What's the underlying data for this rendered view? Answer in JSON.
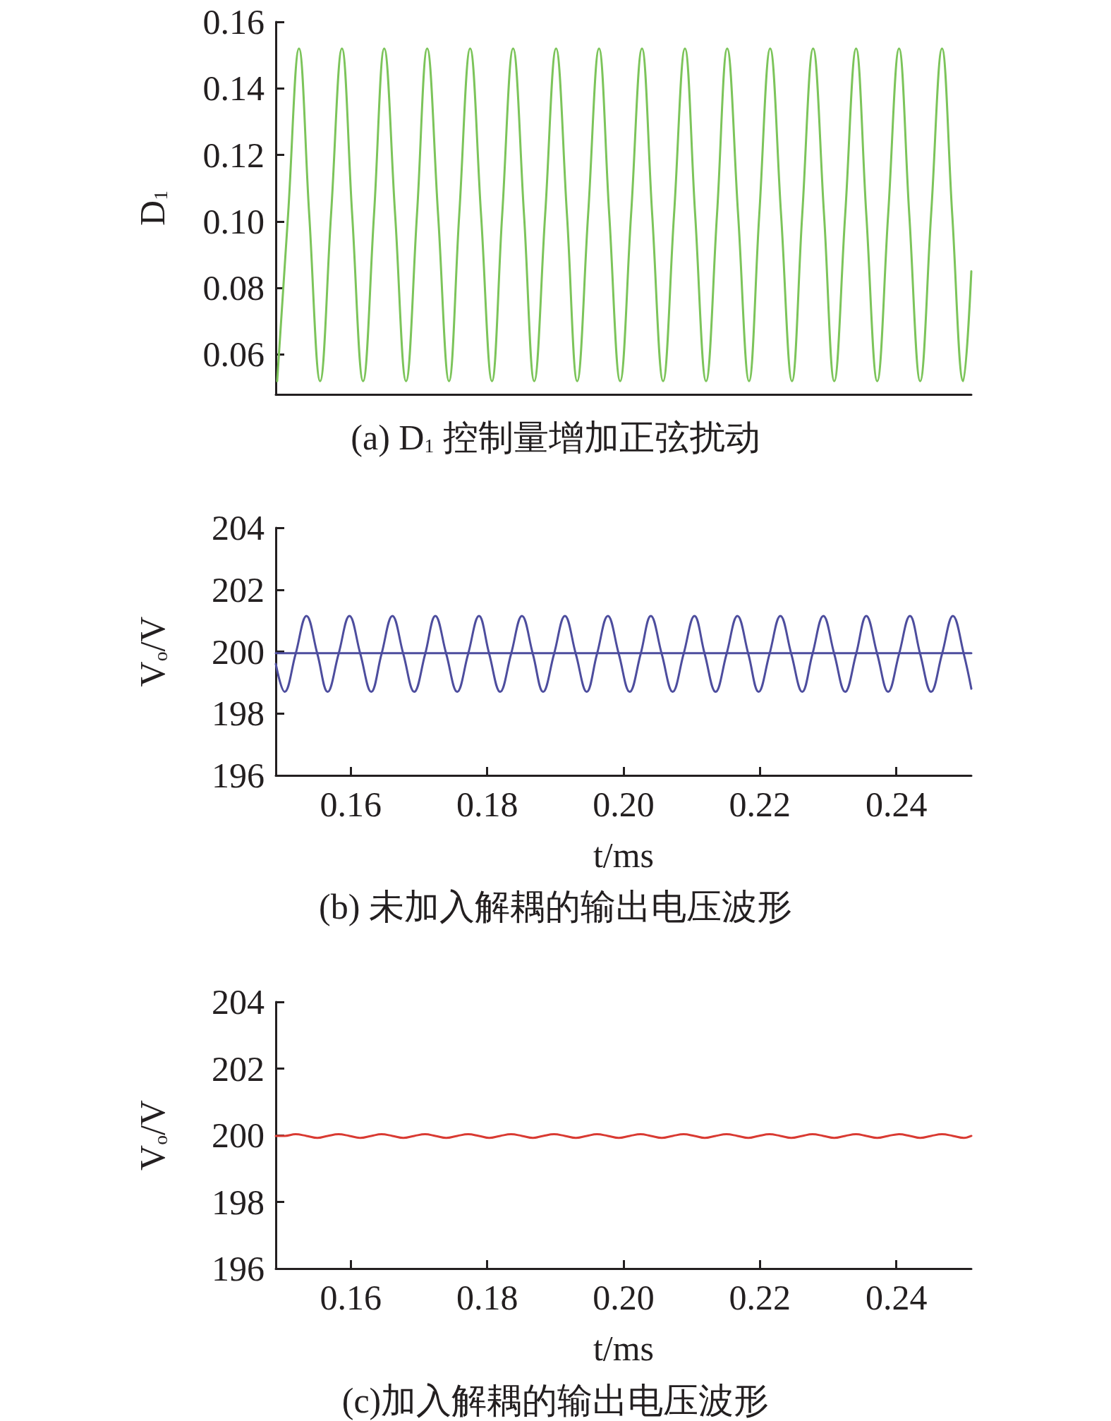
{
  "chart_data": [
    {
      "type": "line",
      "title": "(a) D$_{1}$ 控制量增加正弦扰动",
      "ylabel": "D$_{1}$",
      "xlim": [
        0.149,
        0.251
      ],
      "ylim": [
        0.048,
        0.16
      ],
      "yticks": [
        {
          "value": 0.06,
          "label": "0.06"
        },
        {
          "value": 0.08,
          "label": "0.08"
        },
        {
          "value": 0.1,
          "label": "0.10"
        },
        0.12,
        0.14,
        0.16
      ],
      "tick_labels": "y",
      "series": [
        {
          "color": "#7cc45a",
          "x": [
            0.1492,
            0.1508,
            0.1524,
            0.1539,
            0.1555,
            0.1571,
            0.1587,
            0.1602,
            0.1618,
            0.1634,
            0.1649,
            0.1665,
            0.1681,
            0.1697,
            0.1712,
            0.1728,
            0.1744,
            0.1759,
            0.1775,
            0.1791,
            0.1807,
            0.1822,
            0.1838,
            0.1854,
            0.1869,
            0.1885,
            0.1901,
            0.1917,
            0.1932,
            0.1948,
            0.1964,
            0.1979,
            0.1995,
            0.2011,
            0.2027,
            0.2042,
            0.2058,
            0.2074,
            0.209,
            0.2105,
            0.2121,
            0.2137,
            0.2152,
            0.2168,
            0.2184,
            0.2199,
            0.2215,
            0.2231,
            0.2247,
            0.2262,
            0.2278,
            0.2294,
            0.2309,
            0.2325,
            0.2341,
            0.2356,
            0.2372,
            0.2388,
            0.2404,
            0.2419,
            0.2435,
            0.2451,
            0.2467,
            0.2482,
            0.2498,
            0.251
          ],
          "values": [
            0.052,
            0.102,
            0.152,
            0.102,
            0.052,
            0.102,
            0.152,
            0.102,
            0.052,
            0.102,
            0.152,
            0.102,
            0.052,
            0.102,
            0.152,
            0.102,
            0.052,
            0.102,
            0.152,
            0.102,
            0.052,
            0.102,
            0.152,
            0.102,
            0.052,
            0.102,
            0.152,
            0.102,
            0.052,
            0.102,
            0.152,
            0.102,
            0.052,
            0.102,
            0.152,
            0.102,
            0.052,
            0.102,
            0.152,
            0.102,
            0.052,
            0.102,
            0.152,
            0.102,
            0.052,
            0.102,
            0.152,
            0.102,
            0.052,
            0.102,
            0.152,
            0.102,
            0.052,
            0.102,
            0.152,
            0.102,
            0.052,
            0.102,
            0.152,
            0.102,
            0.052,
            0.102,
            0.152,
            0.102,
            0.052,
            0.085
          ]
        }
      ]
    },
    {
      "type": "line",
      "title": "(b) 未加入解耦的输出电压波形",
      "xlabel": "t/ms",
      "ylabel": "V$_{o}$/V",
      "xlim": [
        0.149,
        0.251
      ],
      "ylim": [
        196,
        204
      ],
      "xticks": [
        0.16,
        0.18,
        {
          "value": 0.2,
          "label": "0.20"
        },
        0.22,
        0.24
      ],
      "yticks": [
        196,
        198,
        200,
        202,
        204
      ],
      "series": [
        {
          "color": "#4d4d9e",
          "x": [
            0.149,
            0.1503,
            0.1519,
            0.1535,
            0.1551,
            0.1566,
            0.1582,
            0.1598,
            0.1614,
            0.163,
            0.1645,
            0.1661,
            0.1677,
            0.1693,
            0.1709,
            0.1724,
            0.174,
            0.1756,
            0.1772,
            0.1788,
            0.1803,
            0.1819,
            0.1835,
            0.1851,
            0.1867,
            0.1882,
            0.1898,
            0.1914,
            0.193,
            0.1946,
            0.1961,
            0.1977,
            0.1993,
            0.2009,
            0.2025,
            0.204,
            0.2056,
            0.2072,
            0.2088,
            0.2104,
            0.2119,
            0.2135,
            0.2151,
            0.2167,
            0.2183,
            0.2198,
            0.2214,
            0.223,
            0.2246,
            0.2262,
            0.2277,
            0.2293,
            0.2309,
            0.2325,
            0.2341,
            0.2356,
            0.2372,
            0.2388,
            0.2404,
            0.242,
            0.2435,
            0.2451,
            0.2467,
            0.2483,
            0.2499,
            0.251
          ],
          "values": [
            199.6,
            198.7,
            199.92,
            201.15,
            199.92,
            198.7,
            199.92,
            201.15,
            199.92,
            198.7,
            199.92,
            201.15,
            199.92,
            198.7,
            199.92,
            201.15,
            199.92,
            198.7,
            199.92,
            201.15,
            199.92,
            198.7,
            199.92,
            201.15,
            199.92,
            198.7,
            199.92,
            201.15,
            199.92,
            198.7,
            199.92,
            201.15,
            199.92,
            198.7,
            199.92,
            201.15,
            199.92,
            198.7,
            199.92,
            201.15,
            199.92,
            198.7,
            199.92,
            201.15,
            199.92,
            198.7,
            199.92,
            201.15,
            199.92,
            198.7,
            199.92,
            201.15,
            199.92,
            198.7,
            199.92,
            201.15,
            199.92,
            198.7,
            199.92,
            201.15,
            199.92,
            198.7,
            199.92,
            201.15,
            199.92,
            198.8
          ]
        },
        {
          "color": "#4d4d9e",
          "x": [
            0.149,
            0.251
          ],
          "values": [
            199.95,
            199.95
          ]
        }
      ]
    },
    {
      "type": "line",
      "title": "(c)加入解耦的输出电压波形",
      "xlabel": "t/ms",
      "ylabel": "V$_{o}$/V",
      "xlim": [
        0.149,
        0.251
      ],
      "ylim": [
        196,
        204
      ],
      "xticks": [
        0.16,
        0.18,
        {
          "value": 0.2,
          "label": "0.20"
        },
        0.22,
        0.24
      ],
      "yticks": [
        196,
        198,
        200,
        202,
        204
      ],
      "series": [
        {
          "color": "#d93a32",
          "x": [
            0.149,
            0.1503,
            0.1519,
            0.1535,
            0.1551,
            0.1566,
            0.1582,
            0.1598,
            0.1614,
            0.163,
            0.1645,
            0.1661,
            0.1677,
            0.1693,
            0.1709,
            0.1724,
            0.174,
            0.1756,
            0.1772,
            0.1788,
            0.1803,
            0.1819,
            0.1835,
            0.1851,
            0.1867,
            0.1882,
            0.1898,
            0.1914,
            0.193,
            0.1946,
            0.1961,
            0.1977,
            0.1993,
            0.2009,
            0.2025,
            0.204,
            0.2056,
            0.2072,
            0.2088,
            0.2104,
            0.2119,
            0.2135,
            0.2151,
            0.2167,
            0.2183,
            0.2198,
            0.2214,
            0.223,
            0.2246,
            0.2262,
            0.2277,
            0.2293,
            0.2309,
            0.2325,
            0.2341,
            0.2356,
            0.2372,
            0.2388,
            0.2404,
            0.242,
            0.2435,
            0.2451,
            0.2467,
            0.2483,
            0.2499,
            0.251
          ],
          "values": [
            199.98,
            199.98,
            200.03,
            199.98,
            199.92,
            199.98,
            200.03,
            199.98,
            199.92,
            199.98,
            200.03,
            199.98,
            199.92,
            199.98,
            200.03,
            199.98,
            199.92,
            199.98,
            200.03,
            199.98,
            199.92,
            199.98,
            200.03,
            199.98,
            199.92,
            199.98,
            200.03,
            199.98,
            199.92,
            199.98,
            200.03,
            199.98,
            199.92,
            199.98,
            200.03,
            199.98,
            199.92,
            199.98,
            200.03,
            199.98,
            199.92,
            199.98,
            200.03,
            199.98,
            199.92,
            199.98,
            200.03,
            199.98,
            199.92,
            199.98,
            200.03,
            199.98,
            199.92,
            199.98,
            200.03,
            199.98,
            199.92,
            199.98,
            200.03,
            199.98,
            199.92,
            199.98,
            200.03,
            199.98,
            199.92,
            199.98
          ]
        }
      ]
    }
  ]
}
